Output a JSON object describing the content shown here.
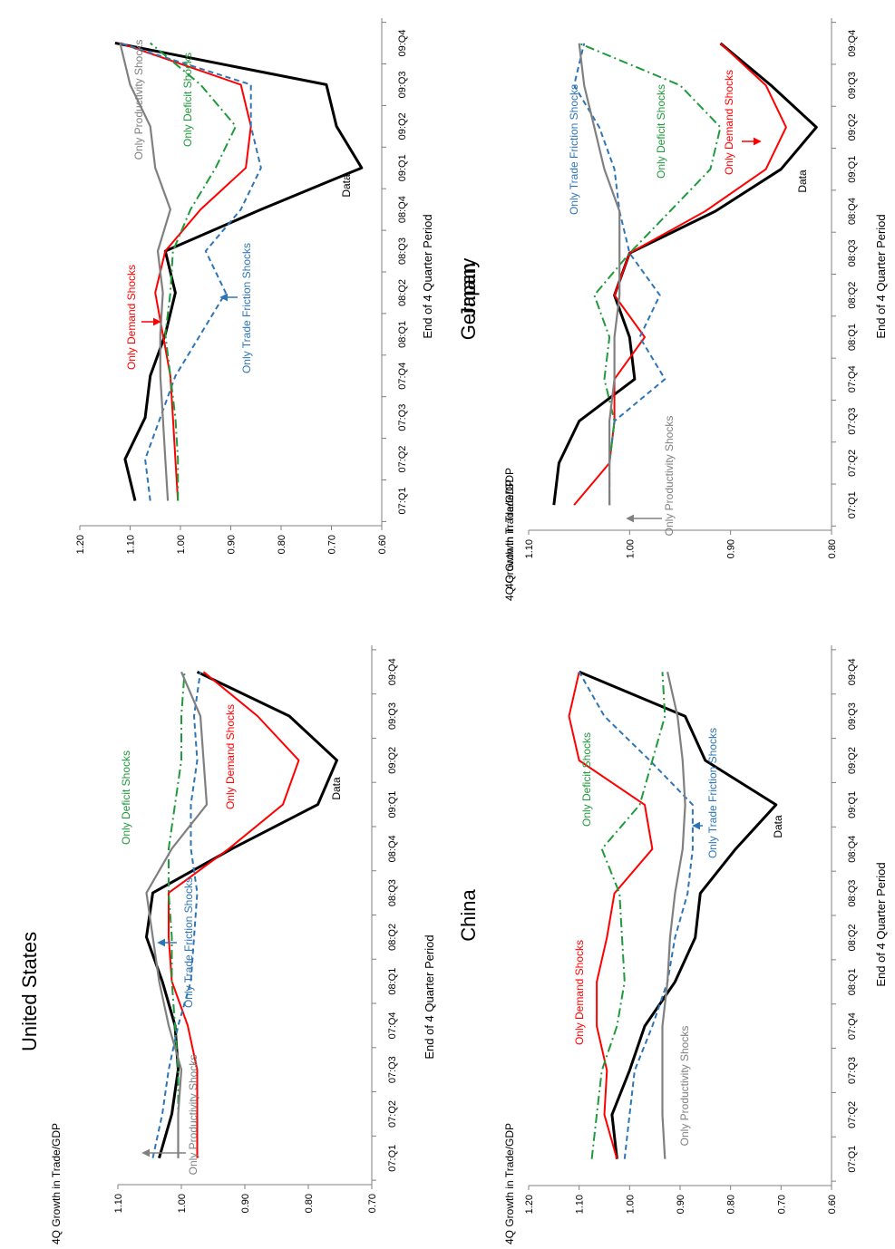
{
  "colors": {
    "data": "#000000",
    "demand": "#ff0000",
    "friction": "#2e75b6",
    "deficit": "#1f9a3c",
    "productivity": "#808080",
    "axis": "#808080"
  },
  "chart_data": [
    {
      "type": "line",
      "title": "United States",
      "ylabel": "4Q Growth in Trade/GDP",
      "xlabel": "End of 4 Quarter Period",
      "ylim": [
        0.7,
        1.1
      ],
      "yticks": [
        "0.70",
        "0.80",
        "0.90",
        "1.00",
        "1.10"
      ],
      "categories": [
        "07:Q1",
        "07:Q2",
        "07:Q3",
        "07:Q4",
        "08:Q1",
        "08:Q2",
        "08:Q3",
        "08:Q4",
        "09:Q1",
        "09:Q2",
        "09:Q3",
        "09:Q4"
      ],
      "series": [
        {
          "key": "data",
          "name": "Data",
          "values": [
            1.035,
            1.015,
            1.005,
            1.01,
            1.03,
            1.055,
            1.045,
            0.92,
            0.785,
            0.755,
            0.83,
            0.975
          ]
        },
        {
          "key": "demand",
          "name": "Only Demand Shocks",
          "values": [
            0.975,
            0.975,
            0.975,
            0.99,
            1.015,
            1.02,
            1.02,
            0.925,
            0.84,
            0.815,
            0.88,
            0.965
          ]
        },
        {
          "key": "friction",
          "name": "Only Trade Friction Shocks",
          "values": [
            1.045,
            1.03,
            1.02,
            1.005,
            0.985,
            0.98,
            0.975,
            0.985,
            0.985,
            0.975,
            0.98,
            0.97
          ]
        },
        {
          "key": "deficit",
          "name": "Only Deficit Shocks",
          "values": [
            1.005,
            1.005,
            1.005,
            1.01,
            1.015,
            1.015,
            1.02,
            1.02,
            1.01,
            1.0,
            1.0,
            0.995
          ]
        },
        {
          "key": "productivity",
          "name": "Only Productivity Shocks",
          "values": [
            1.005,
            1.005,
            1.0,
            1.02,
            1.035,
            1.045,
            1.055,
            1.015,
            0.96,
            0.965,
            0.97,
            1.0
          ]
        }
      ],
      "annotations": [
        "Only Deficit Shocks",
        "Only Demand Shocks",
        "Only Trade Friction Shocks",
        "Only Productivity Shocks",
        "Data"
      ]
    },
    {
      "type": "line",
      "title": "Japan",
      "ylabel": "4Q Growth in Trade/GDP",
      "xlabel": "End of 4 Quarter Period",
      "ylim": [
        0.6,
        1.2
      ],
      "yticks": [
        "0.60",
        "0.70",
        "0.80",
        "0.90",
        "1.00",
        "1.10",
        "1.20"
      ],
      "categories": [
        "07:Q1",
        "07:Q2",
        "07:Q3",
        "07:Q4",
        "08:Q1",
        "08:Q2",
        "08:Q3",
        "08:Q4",
        "09:Q1",
        "09:Q2",
        "09:Q3",
        "09:Q4"
      ],
      "series": [
        {
          "key": "data",
          "name": "Data",
          "values": [
            1.09,
            1.11,
            1.07,
            1.06,
            1.03,
            1.01,
            1.03,
            0.84,
            0.64,
            0.69,
            0.71,
            1.13
          ]
        },
        {
          "key": "demand",
          "name": "Only Demand Shocks",
          "values": [
            1.005,
            1.01,
            1.015,
            1.02,
            1.035,
            1.05,
            1.03,
            0.96,
            0.87,
            0.86,
            0.88,
            1.12
          ]
        },
        {
          "key": "friction",
          "name": "Only Trade Friction Shocks",
          "values": [
            1.06,
            1.07,
            1.04,
            1.01,
            0.96,
            0.91,
            0.95,
            0.88,
            0.84,
            0.86,
            0.86,
            1.12
          ]
        },
        {
          "key": "deficit",
          "name": "Only Deficit Shocks",
          "values": [
            1.005,
            1.005,
            1.01,
            1.02,
            1.03,
            1.02,
            1.015,
            0.98,
            0.93,
            0.89,
            0.96,
            1.06
          ]
        },
        {
          "key": "productivity",
          "name": "Only Productivity Shocks",
          "values": [
            1.025,
            1.03,
            1.035,
            1.04,
            1.04,
            1.035,
            1.045,
            1.02,
            1.05,
            1.06,
            1.1,
            1.12
          ]
        }
      ],
      "annotations": [
        "Only Productivity Shocks",
        "Only Deficit Shocks",
        "Only Demand Shocks",
        "Only Trade Friction Shocks",
        "Data"
      ]
    },
    {
      "type": "line",
      "title": "China",
      "ylabel": "4Q Growth in Trade/GDP",
      "xlabel": "End of 4 Quarter Period",
      "ylim": [
        0.6,
        1.2
      ],
      "yticks": [
        "0.60",
        "0.70",
        "0.80",
        "0.90",
        "1.00",
        "1.10",
        "1.20"
      ],
      "categories": [
        "07:Q1",
        "07:Q2",
        "07:Q3",
        "07:Q4",
        "08:Q1",
        "08:Q2",
        "08:Q3",
        "08:Q4",
        "09:Q1",
        "09:Q2",
        "09:Q3",
        "09:Q4"
      ],
      "series": [
        {
          "key": "data",
          "name": "Data",
          "values": [
            1.025,
            1.035,
            1.0,
            0.97,
            0.91,
            0.87,
            0.86,
            0.79,
            0.71,
            0.85,
            0.89,
            1.1
          ]
        },
        {
          "key": "demand",
          "name": "Only Demand Shocks",
          "values": [
            1.025,
            1.05,
            1.045,
            1.065,
            1.065,
            1.045,
            1.03,
            0.955,
            0.97,
            1.1,
            1.12,
            1.1
          ]
        },
        {
          "key": "friction",
          "name": "Only Trade Friction Shocks",
          "values": [
            1.01,
            1.0,
            0.99,
            0.955,
            0.925,
            0.91,
            0.885,
            0.875,
            0.875,
            0.96,
            1.05,
            1.1
          ]
        },
        {
          "key": "deficit",
          "name": "Only Deficit Shocks",
          "values": [
            1.075,
            1.065,
            1.055,
            1.025,
            1.01,
            1.015,
            1.02,
            1.055,
            0.98,
            0.955,
            0.93,
            0.935
          ]
        },
        {
          "key": "productivity",
          "name": "Only Productivity Shocks",
          "values": [
            0.93,
            0.935,
            0.935,
            0.935,
            0.925,
            0.92,
            0.91,
            0.895,
            0.89,
            0.895,
            0.905,
            0.925
          ]
        }
      ],
      "annotations": [
        "Only Demand Shocks",
        "Only Deficit Shocks",
        "Only Trade Friction Shocks",
        "Only Productivity Shocks",
        "Data"
      ]
    },
    {
      "type": "line",
      "title": "Germany",
      "ylabel": "4Q Growth in Trade/GDP",
      "xlabel": "End of 4 Quarter Period",
      "ylim": [
        0.8,
        1.1
      ],
      "yticks": [
        "0.80",
        "0.90",
        "1.00",
        "1.10"
      ],
      "categories": [
        "07:Q1",
        "07:Q2",
        "07:Q3",
        "07:Q4",
        "08:Q1",
        "08:Q2",
        "08:Q3",
        "08:Q4",
        "09:Q1",
        "09:Q2",
        "09:Q3",
        "09:Q4"
      ],
      "series": [
        {
          "key": "data",
          "name": "Data",
          "values": [
            1.075,
            1.07,
            1.05,
            0.995,
            1.0,
            1.015,
            1.0,
            0.915,
            0.85,
            0.815,
            0.86,
            0.91
          ]
        },
        {
          "key": "demand",
          "name": "Only Demand Shocks",
          "values": [
            1.055,
            1.02,
            1.015,
            1.015,
            0.985,
            1.015,
            1.0,
            0.925,
            0.865,
            0.845,
            0.865,
            0.91
          ]
        },
        {
          "key": "friction",
          "name": "Only Trade Friction Shocks",
          "values": [
            1.02,
            1.02,
            1.015,
            0.965,
            0.99,
            0.97,
            1.0,
            1.01,
            1.015,
            1.03,
            1.055,
            1.045
          ]
        },
        {
          "key": "deficit",
          "name": "Only Deficit Shocks",
          "values": [
            1.02,
            1.02,
            1.015,
            1.025,
            1.02,
            1.035,
            1.0,
            0.96,
            0.92,
            0.91,
            0.95,
            1.05
          ]
        },
        {
          "key": "productivity",
          "name": "Only Productivity Shocks",
          "values": [
            1.02,
            1.02,
            1.02,
            1.015,
            1.015,
            1.01,
            1.01,
            1.01,
            1.025,
            1.035,
            1.045,
            1.05
          ]
        }
      ],
      "annotations": [
        "Only Trade Friction Shocks",
        "Only Deficit Shocks",
        "Only Demand Shocks",
        "Only Productivity Shocks",
        "Data"
      ]
    }
  ]
}
